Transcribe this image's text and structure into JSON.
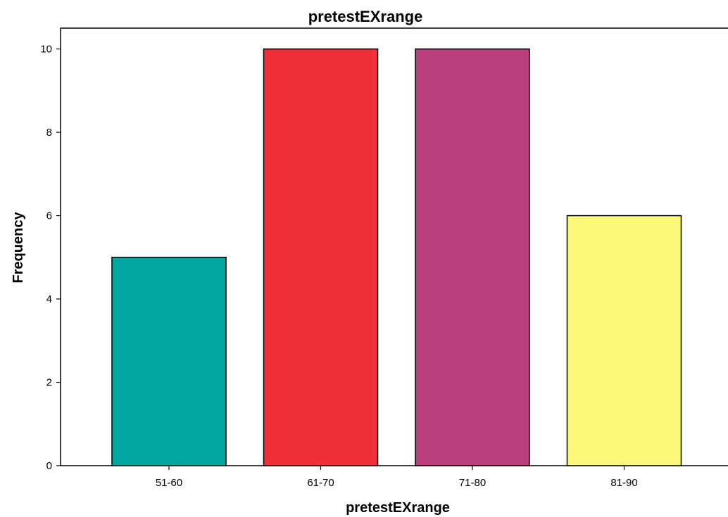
{
  "chart_data": {
    "type": "bar",
    "title": "pretestEXrange",
    "xlabel": "pretestEXrange",
    "ylabel": "Frequency",
    "categories": [
      "51-60",
      "61-70",
      "71-80",
      "81-90"
    ],
    "values": [
      5,
      10,
      10,
      6
    ],
    "colors": [
      "#00a6a0",
      "#ef3038",
      "#ba3f7d",
      "#fbf87a"
    ],
    "ylim": [
      0,
      10.5
    ],
    "yticks": [
      0,
      2,
      4,
      6,
      8,
      10
    ],
    "grid": false,
    "legend": "none"
  }
}
